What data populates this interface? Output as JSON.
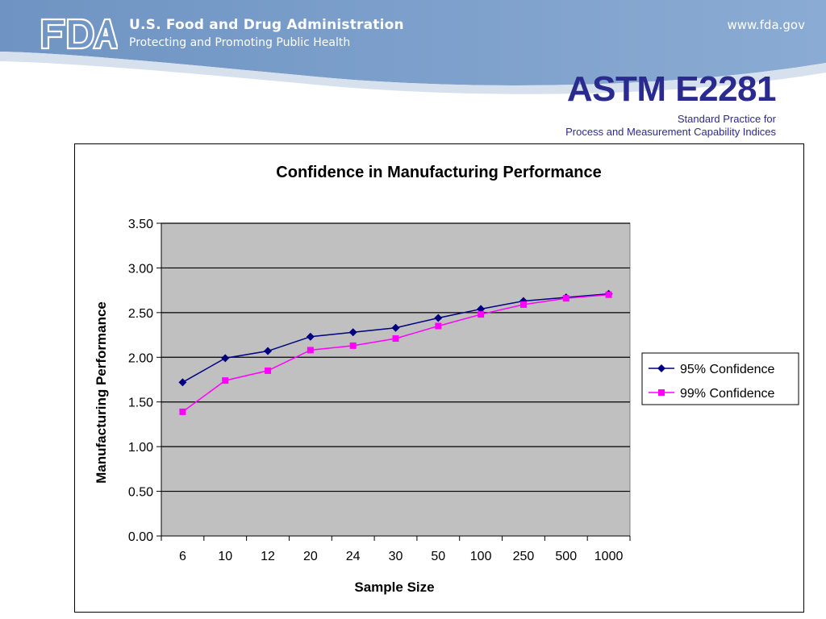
{
  "header": {
    "logo_text": "FDA",
    "agency_name": "U.S. Food and Drug Administration",
    "tagline": "Protecting and Promoting Public Health",
    "url": "www.fda.gov",
    "banner_color": "#7c9fca"
  },
  "slide": {
    "title": "ASTM E2281",
    "subtitle_line1": "Standard Practice for",
    "subtitle_line2": "Process and Measurement Capability Indices",
    "title_color": "#2b2b8f"
  },
  "chart_data": {
    "type": "line",
    "title": "Confidence in Manufacturing Performance",
    "xlabel": "Sample Size",
    "ylabel": "Manufacturing Performance",
    "categories": [
      "6",
      "10",
      "12",
      "20",
      "24",
      "30",
      "50",
      "100",
      "250",
      "500",
      "1000"
    ],
    "ylim": [
      0,
      3.5
    ],
    "yticks": [
      "0.00",
      "0.50",
      "1.00",
      "1.50",
      "2.00",
      "2.50",
      "3.00",
      "3.50"
    ],
    "grid": true,
    "plot_background": "#c0c0c0",
    "legend_position": "right",
    "series": [
      {
        "name": "95% Confidence",
        "color": "#000080",
        "marker": "diamond",
        "values": [
          1.72,
          1.99,
          2.07,
          2.23,
          2.28,
          2.33,
          2.44,
          2.54,
          2.63,
          2.67,
          2.71
        ]
      },
      {
        "name": "99% Confidence",
        "color": "#ff00ff",
        "marker": "square",
        "values": [
          1.39,
          1.74,
          1.85,
          2.08,
          2.13,
          2.21,
          2.35,
          2.48,
          2.59,
          2.66,
          2.7
        ]
      }
    ]
  }
}
